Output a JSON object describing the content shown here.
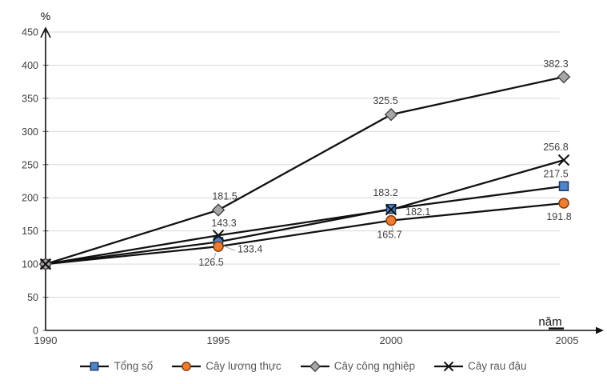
{
  "chart_data": {
    "type": "line",
    "title": "",
    "xlabel": "năm",
    "ylabel": "%",
    "x_categories": [
      "1990",
      "1995",
      "2000",
      "2005"
    ],
    "ylim": [
      0,
      450
    ],
    "ytick_step": 50,
    "grid": true,
    "legend_position": "bottom",
    "line_color": "#111111",
    "series": [
      {
        "name": "Tổng số",
        "marker": "square",
        "fill": "#4e86c8",
        "stroke": "#1f3864",
        "values": [
          100,
          133.4,
          183.2,
          217.5
        ]
      },
      {
        "name": "Cây lương thực",
        "marker": "circle",
        "fill": "#ed7d31",
        "stroke": "#843c0c",
        "values": [
          100,
          126.5,
          165.7,
          191.8
        ]
      },
      {
        "name": "Cây công nghiệp",
        "marker": "diamond",
        "fill": "#a6a6a6",
        "stroke": "#3f3f3f",
        "values": [
          100,
          181.5,
          325.5,
          382.3
        ]
      },
      {
        "name": "Cây rau đậu",
        "marker": "x",
        "fill": "#111111",
        "stroke": "#111111",
        "values": [
          100,
          143.3,
          182.1,
          256.8
        ]
      }
    ],
    "colors": {
      "grid": "#d9d9d9",
      "axis": "#111111",
      "tick_label": "#404040",
      "data_label": "#3f3f3f",
      "legend_text": "#595959",
      "leader": "#a6a6a6"
    }
  }
}
